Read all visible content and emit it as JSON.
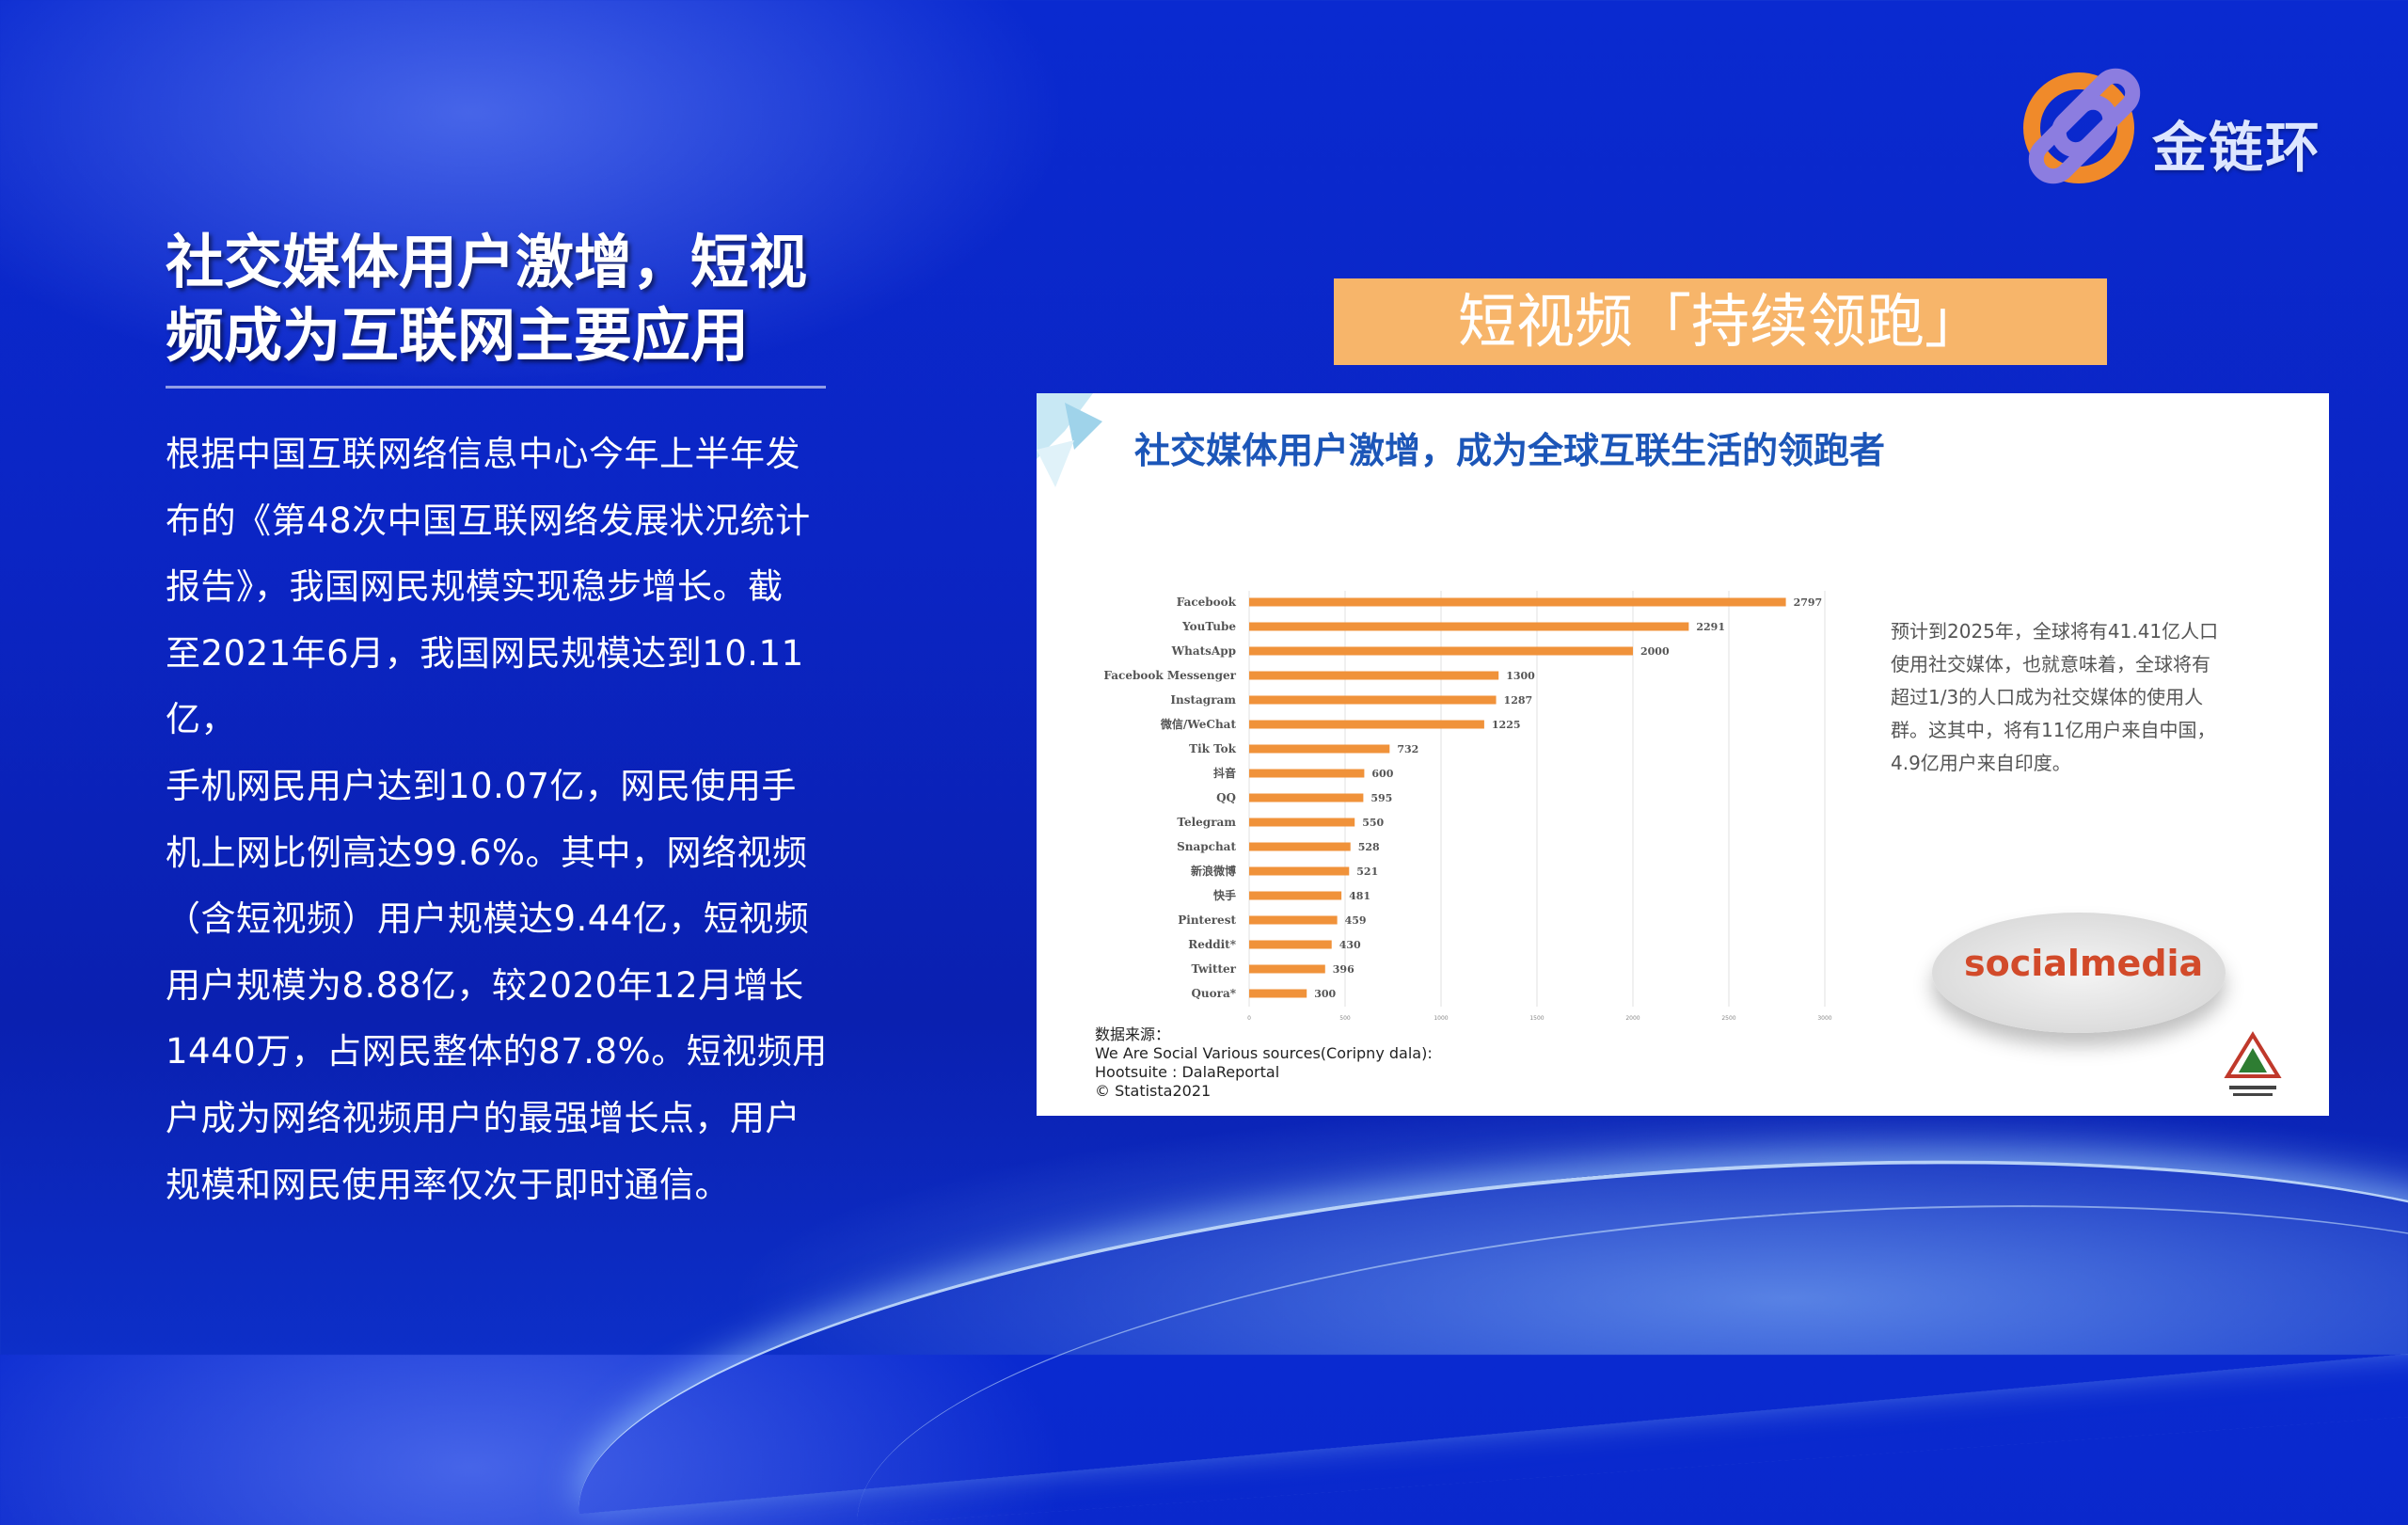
{
  "brand": {
    "name": "金链环"
  },
  "heading": {
    "line1": "社交媒体用户激增，短视",
    "line2": "频成为互联网主要应用"
  },
  "paragraph": [
    "根据中国互联网络信息中心今年上半年发",
    "布的《第48次中国互联网络发展状况统计",
    "报告》，我国网民规模实现稳步增长。截",
    "至2021年6月，我国网民规模达到10.11亿，",
    "手机网民用户达到10.07亿，网民使用手",
    "机上网比例高达99.6%。其中，网络视频",
    "（含短视频）用户规模达9.44亿，短视频",
    "用户规模为8.88亿，较2020年12月增长",
    "1440万，占网民整体的87.8%。短视频用",
    "户成为网络视频用户的最强增长点，用户",
    "规模和网民使用率仅次于即时通信。"
  ],
  "banner": {
    "text": "短视频「持续领跑」"
  },
  "card": {
    "title": "社交媒体用户激增，成为全球互联生活的领跑者",
    "side_note": [
      "预计到2025年，全球将有41.41亿人口",
      "使用社交媒体，也就意味着，全球将有",
      "超过1/3的人口成为社交媒体的使用人",
      "群。这其中，将有11亿用户来自中国，",
      "4.9亿用户来自印度。"
    ],
    "source": [
      "数据来源：",
      "We Are Social Various sources(Coripny dala):",
      "Hootsuite : DalaReportal",
      "© Statista2021"
    ],
    "social_media_badge": {
      "word1": "social",
      "word2": "media"
    }
  },
  "chart_data": {
    "type": "bar",
    "orientation": "horizontal",
    "categories": [
      "Facebook",
      "YouTube",
      "WhatsApp",
      "Facebook Messenger",
      "Instagram",
      "微信/WeChat",
      "Tik Tok",
      "抖音",
      "QQ",
      "Telegram",
      "Snapchat",
      "新浪微博",
      "快手",
      "Pinterest",
      "Reddit*",
      "Twitter",
      "Quora*"
    ],
    "values": [
      2797,
      2291,
      2000,
      1300,
      1287,
      1225,
      732,
      600,
      595,
      550,
      528,
      521,
      481,
      459,
      430,
      396,
      300
    ],
    "xlim": [
      0,
      3000
    ],
    "xticks": [
      0,
      500,
      1000,
      1500,
      2000,
      2500,
      3000
    ],
    "bar_color": "#f0923a",
    "grid": true
  }
}
